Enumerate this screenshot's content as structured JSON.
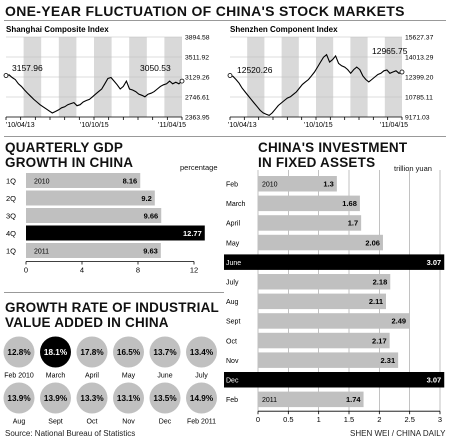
{
  "header": {
    "title": "ONE-YEAR FLUCTUATION OF CHINA'S STOCK MARKETS"
  },
  "colors": {
    "bar": "#c0c0c0",
    "bar_highlight": "#000000",
    "line": "#000000",
    "band": "#d9d9d9",
    "circle": "#c0c0c0",
    "circle_highlight": "#000000"
  },
  "shanghai": {
    "title": "Shanghai Composite Index",
    "annotations": [
      "3157.96",
      "3050.53"
    ],
    "x_labels": [
      "'10/04/13",
      "'10/10/15",
      "'11/04/15"
    ]
  },
  "shenzhen": {
    "title": "Shenzhen Component Index",
    "annotations": [
      "12520.26",
      "12965.75"
    ],
    "x_labels": [
      "'10/04/13",
      "'10/10/15",
      "'11/04/15"
    ]
  },
  "gdp": {
    "title_lines": [
      "QUARTERLY GDP",
      "GROWTH IN CHINA"
    ],
    "unit": "percentage",
    "year_labels": [
      "2010",
      "2011"
    ]
  },
  "investment": {
    "title_lines": [
      "CHINA'S INVESTMENT",
      "IN FIXED ASSETS"
    ],
    "unit": "trillion yuan",
    "year_labels": [
      "2010",
      "2011"
    ]
  },
  "industrial": {
    "title_lines": [
      "GROWTH RATE OF INDUSTRIAL",
      "VALUE ADDED IN CHINA"
    ],
    "row1": [
      {
        "value": "12.8%",
        "label": "Feb 2010",
        "highlight": false
      },
      {
        "value": "18.1%",
        "label": "March",
        "highlight": true
      },
      {
        "value": "17.8%",
        "label": "April",
        "highlight": false
      },
      {
        "value": "16.5%",
        "label": "May",
        "highlight": false
      },
      {
        "value": "13.7%",
        "label": "June",
        "highlight": false
      },
      {
        "value": "13.4%",
        "label": "July",
        "highlight": false
      }
    ],
    "row2": [
      {
        "value": "13.9%",
        "label": "Aug",
        "highlight": false
      },
      {
        "value": "13.9%",
        "label": "Sept",
        "highlight": false
      },
      {
        "value": "13.3%",
        "label": "Oct",
        "highlight": false
      },
      {
        "value": "13.1%",
        "label": "Nov",
        "highlight": false
      },
      {
        "value": "13.5%",
        "label": "Dec",
        "highlight": false
      },
      {
        "value": "14.9%",
        "label": "Feb 2011",
        "highlight": false
      }
    ]
  },
  "footer": {
    "source": "Source: National Bureau of Statistics",
    "credit": "SHEN WEI / CHINA DAILY"
  },
  "chart_data": [
    {
      "id": "shanghai",
      "type": "line",
      "title": "Shanghai Composite Index",
      "x_ticks": [
        "'10/04/13",
        "'10/10/15",
        "'11/04/15"
      ],
      "y_ticks": [
        3894.58,
        3511.92,
        3129.26,
        2746.61,
        2363.95
      ],
      "ylim": [
        2363.95,
        3894.58
      ],
      "grid": true,
      "series": [
        {
          "values": [
            3157.96,
            3170,
            3120,
            3080,
            3000,
            2950,
            2880,
            2820,
            2760,
            2700,
            2650,
            2600,
            2560,
            2520,
            2480,
            2440,
            2470,
            2500,
            2540,
            2560,
            2600,
            2620,
            2640,
            2580,
            2600,
            2650,
            2680,
            2700,
            2750,
            2800,
            2850,
            2900,
            3000,
            3100,
            3120,
            3050,
            2980,
            2900,
            2950,
            3050,
            2900,
            2880,
            2850,
            2800,
            2780,
            2750,
            2800,
            2820,
            2850,
            2900,
            2950,
            2980,
            3000,
            3050.53,
            3000,
            3030,
            3000,
            3050.53
          ]
        }
      ]
    },
    {
      "id": "shenzhen",
      "type": "line",
      "title": "Shenzhen Component Index",
      "x_ticks": [
        "'10/04/13",
        "'10/10/15",
        "'11/04/15"
      ],
      "y_ticks": [
        15627.37,
        14013.29,
        12399.2,
        10785.11,
        9171.03
      ],
      "ylim": [
        9171.03,
        15627.37
      ],
      "grid": true,
      "series": [
        {
          "values": [
            12520.26,
            12450,
            12200,
            11900,
            11500,
            11200,
            10900,
            10600,
            10300,
            10000,
            9700,
            9500,
            9400,
            9300,
            9500,
            9800,
            10100,
            10300,
            10500,
            10700,
            10800,
            11000,
            11200,
            11500,
            11800,
            12000,
            12200,
            12500,
            12800,
            13200,
            13600,
            14000,
            14200,
            13600,
            13800,
            14100,
            13500,
            13300,
            13200,
            13000,
            12700,
            13000,
            13200,
            13000,
            12500,
            12200,
            12000,
            12200,
            12400,
            12600,
            12700,
            12900,
            12965.75,
            12700,
            12800,
            12900,
            12700,
            12800
          ]
        }
      ]
    },
    {
      "id": "gdp",
      "type": "bar",
      "title": "QUARTERLY GDP GROWTH IN CHINA",
      "ylabel": "percentage",
      "categories": [
        "1Q",
        "2Q",
        "3Q",
        "4Q",
        "1Q"
      ],
      "values": [
        8.16,
        9.2,
        9.66,
        12.77,
        9.63
      ],
      "highlight_index": 3,
      "xlim": [
        0,
        12
      ],
      "x_ticks": [
        0,
        4,
        8,
        12
      ]
    },
    {
      "id": "investment",
      "type": "bar",
      "title": "CHINA'S INVESTMENT IN FIXED ASSETS",
      "ylabel": "trillion yuan",
      "categories": [
        "Feb",
        "March",
        "April",
        "May",
        "June",
        "July",
        "Aug",
        "Sept",
        "Oct",
        "Nov",
        "Dec",
        "Feb"
      ],
      "values": [
        1.3,
        1.68,
        1.7,
        2.06,
        3.07,
        2.18,
        2.11,
        2.49,
        2.17,
        2.31,
        3.07,
        1.74
      ],
      "highlight_indices": [
        4,
        10
      ],
      "xlim": [
        0,
        3
      ],
      "x_ticks": [
        0,
        0.5,
        1,
        1.5,
        2,
        2.5,
        3
      ]
    }
  ]
}
